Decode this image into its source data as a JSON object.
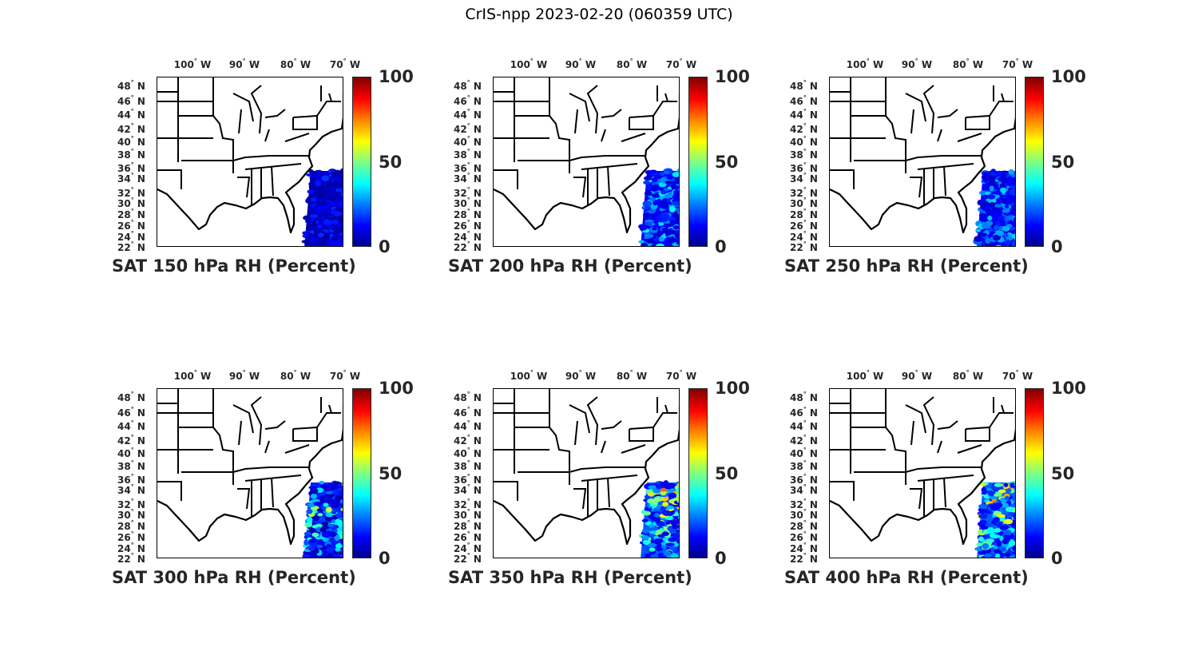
{
  "figure": {
    "title": "CrIS-npp 2023-02-20 (060359 UTC)"
  },
  "chart_data": {
    "type": "map",
    "lon_ticks": [
      "100",
      "90",
      "80",
      "70"
    ],
    "lon_suffix": "W",
    "lat_ticks": [
      "48",
      "46",
      "44",
      "42",
      "40",
      "38",
      "36",
      "34",
      "32",
      "30",
      "28",
      "26",
      "24",
      "22"
    ],
    "lat_suffix": "N",
    "colorbar": {
      "min": 0,
      "max": 100,
      "ticks": [
        "100",
        "50",
        "0"
      ],
      "colormap": "jet"
    },
    "panels": [
      {
        "title": "SAT 150 hPa RH (Percent)",
        "approx_rh_range": [
          3,
          20
        ]
      },
      {
        "title": "SAT 200 hPa RH (Percent)",
        "approx_rh_range": [
          8,
          40
        ]
      },
      {
        "title": "SAT 250 hPa RH (Percent)",
        "approx_rh_range": [
          8,
          35
        ]
      },
      {
        "title": "SAT 300 hPa RH (Percent)",
        "approx_rh_range": [
          5,
          75
        ]
      },
      {
        "title": "SAT 350 hPa RH (Percent)",
        "approx_rh_range": [
          10,
          85
        ]
      },
      {
        "title": "SAT 400 hPa RH (Percent)",
        "approx_rh_range": [
          10,
          90
        ]
      }
    ]
  }
}
